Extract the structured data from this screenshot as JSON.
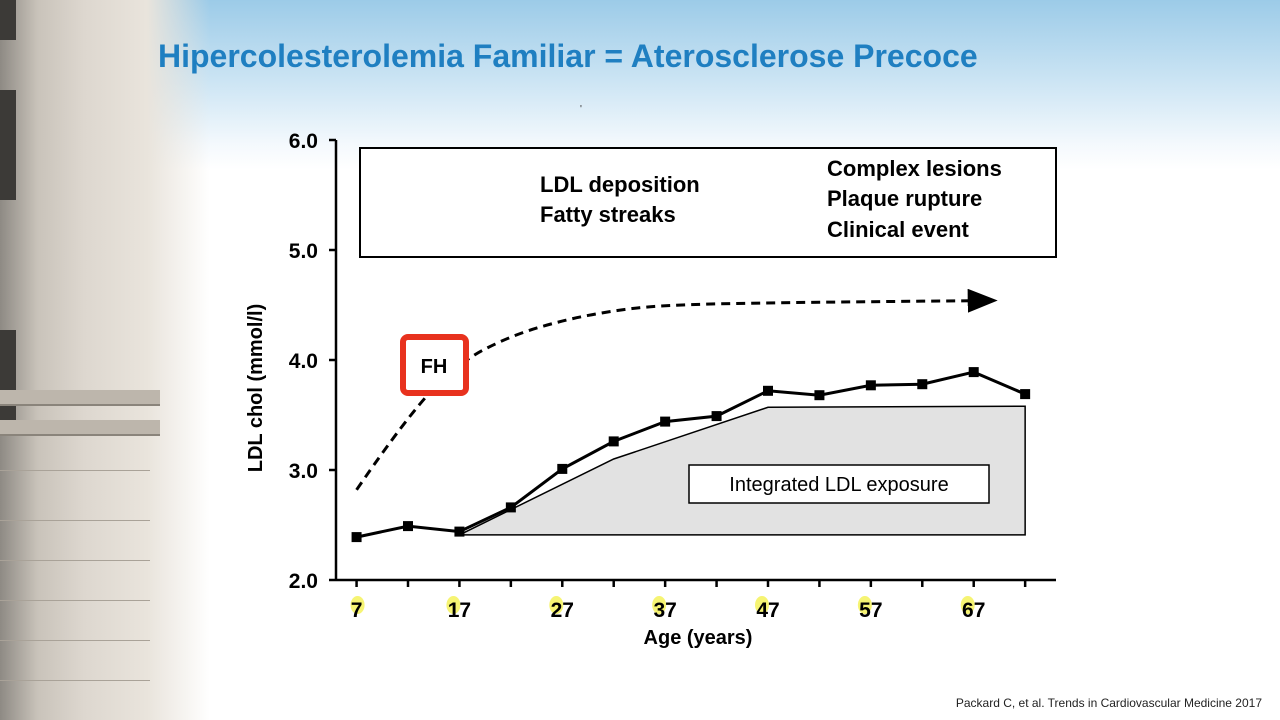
{
  "slide": {
    "title": "Hipercolesterolemia Familiar = Aterosclerose Precoce",
    "stray_mark": "'",
    "citation": "Packard C, et al. Trends in Cardiovascular Medicine 2017"
  },
  "chart_data": {
    "type": "line",
    "xlabel": "Age (years)",
    "ylabel": "LDL chol (mmol/l)",
    "x_ticks": [
      7,
      17,
      27,
      37,
      47,
      57,
      67
    ],
    "y_ticks": [
      "2.0",
      "3.0",
      "4.0",
      "5.0",
      "6.0"
    ],
    "ylim": [
      2.0,
      6.0
    ],
    "xlim": [
      5,
      75
    ],
    "series": [
      {
        "style": "solid-line-square-markers",
        "x": [
          7,
          12,
          17,
          22,
          27,
          32,
          37,
          42,
          47,
          52,
          57,
          62,
          67,
          72
        ],
        "y": [
          2.39,
          2.49,
          2.44,
          2.66,
          3.01,
          3.26,
          3.44,
          3.49,
          3.72,
          3.68,
          3.77,
          3.78,
          3.89,
          3.69
        ]
      },
      {
        "style": "dashed-arrow",
        "x": [
          7,
          12,
          17,
          22,
          27,
          32,
          37,
          47,
          57,
          67
        ],
        "y": [
          2.82,
          3.5,
          3.98,
          4.22,
          4.36,
          4.45,
          4.5,
          4.52,
          4.53,
          4.54
        ]
      }
    ],
    "exposure_area": {
      "label": "Integrated LDL exposure",
      "x": [
        17,
        32,
        47,
        72,
        72
      ],
      "y": [
        2.41,
        3.1,
        3.57,
        3.58,
        2.41
      ]
    },
    "annotations": {
      "box_left_lines": [
        "LDL deposition",
        "Fatty streaks"
      ],
      "box_right_lines": [
        "Complex lesions",
        "Plaque rupture",
        "Clinical event"
      ],
      "fh_label": "FH",
      "fh_highlight_color": "#e8321e"
    },
    "tick_highlight_color": "#f5f25a",
    "grid": false,
    "legend": "none"
  }
}
